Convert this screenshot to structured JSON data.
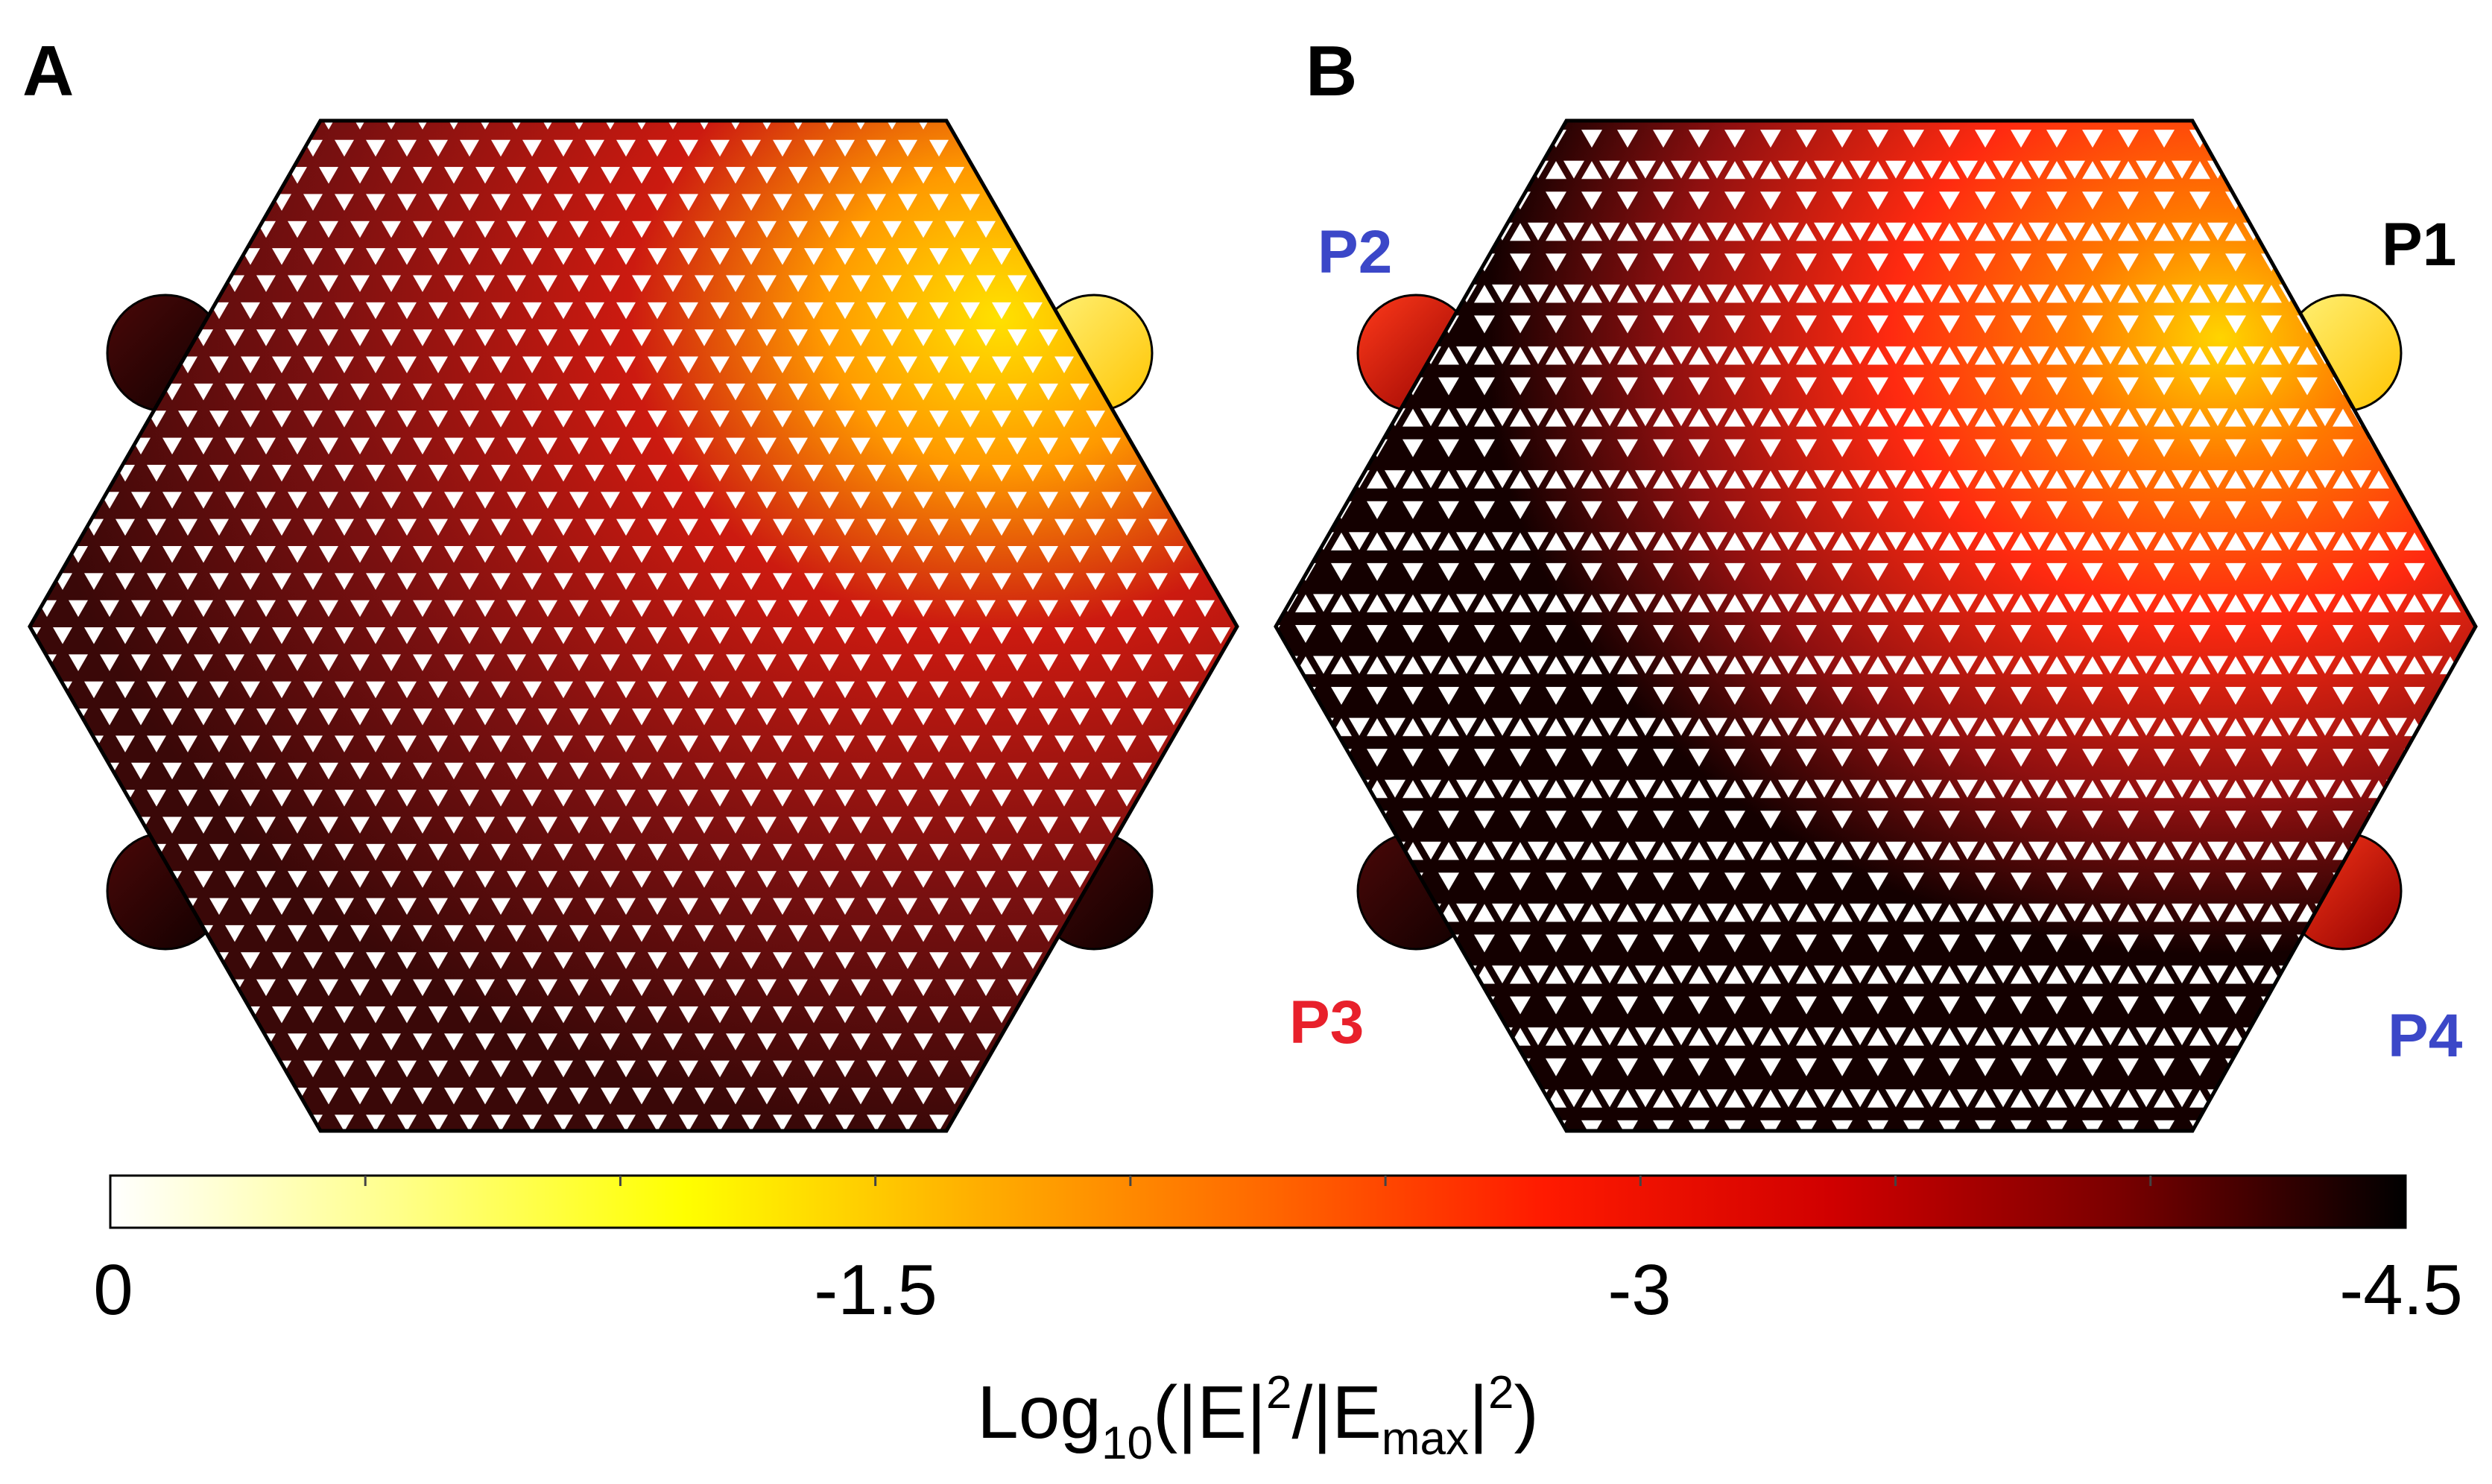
{
  "panels": [
    {
      "label": "A"
    },
    {
      "label": "B",
      "ports": [
        {
          "label": "P1",
          "color": "#000000"
        },
        {
          "label": "P2",
          "color": "#3b47c8"
        },
        {
          "label": "P3",
          "color": "#e8202b"
        },
        {
          "label": "P4",
          "color": "#3b47c8"
        }
      ]
    }
  ],
  "colorbar": {
    "ticks": [
      "0",
      "-1.5",
      "-3",
      "-4.5"
    ],
    "title_main": "Log",
    "title_sub": "10",
    "title_open": "(|E|",
    "title_sup1": "2",
    "title_mid": "/|E",
    "title_sub2": "max",
    "title_close_bar": "|",
    "title_sup2": "2",
    "title_end": ")",
    "colormap": [
      "#ffffff",
      "#ffff8a",
      "#ffff00",
      "#ffb000",
      "#ff6a00",
      "#ff1a00",
      "#d00000",
      "#7a0000",
      "#000000"
    ]
  }
}
